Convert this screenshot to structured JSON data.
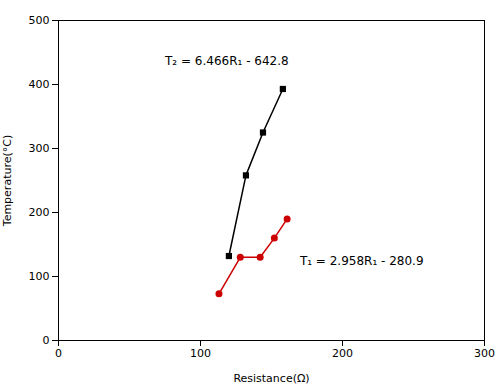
{
  "chart_data": {
    "type": "line",
    "xlabel": "Resistance(Ω)",
    "ylabel": "Temperature(°C)",
    "series": [
      {
        "x": [
          120,
          132,
          144,
          158
        ],
        "values": [
          132,
          258,
          325,
          393
        ],
        "color": "#000000",
        "marker": "square"
      },
      {
        "x": [
          113,
          128,
          142,
          152,
          161
        ],
        "values": [
          73,
          130,
          130,
          160,
          190
        ],
        "color": "#cc0000",
        "marker": "circle"
      }
    ],
    "annotations": [
      {
        "text": "T₂ = 6.466R₁ - 642.8",
        "x": 75,
        "y": 430,
        "color": "#000000"
      },
      {
        "text": "T₁ = 2.958R₁ - 280.9",
        "x": 170,
        "y": 118,
        "color": "#000000"
      }
    ],
    "xlim": [
      0,
      300
    ],
    "ylim": [
      0,
      500
    ],
    "xticks": [
      0,
      100,
      200,
      300
    ],
    "yticks": [
      0,
      100,
      200,
      300,
      400,
      500
    ],
    "grid": false
  }
}
